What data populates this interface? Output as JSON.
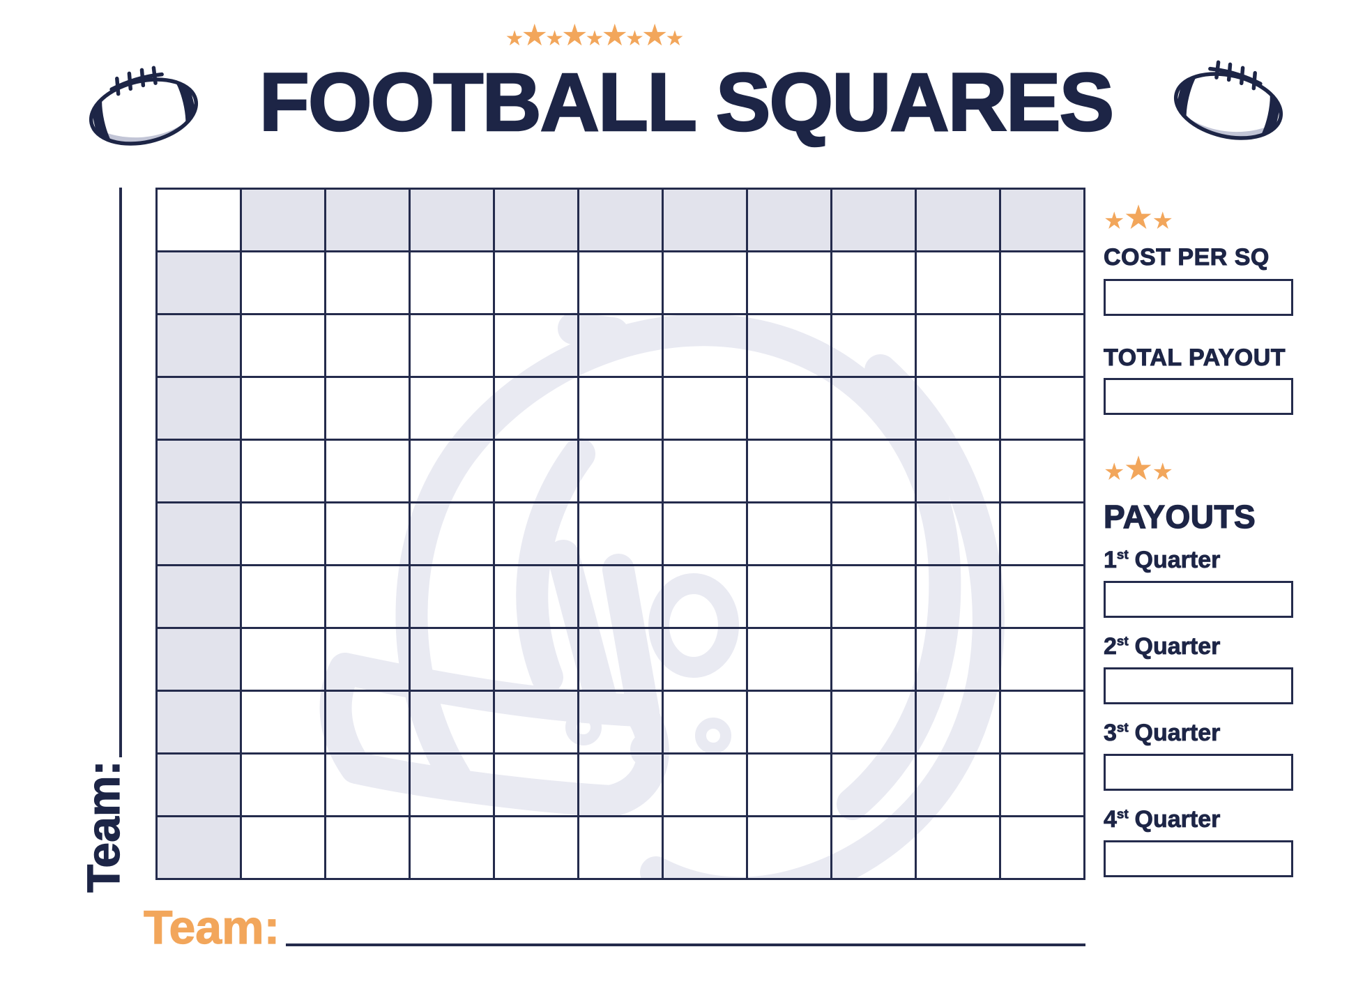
{
  "header": {
    "title": "FOOTBALL SQUARES",
    "top_stars_pattern": [
      "small",
      "large",
      "small",
      "large",
      "small",
      "large",
      "small",
      "large",
      "small"
    ]
  },
  "icons": {
    "star_char": "★"
  },
  "grid": {
    "rows": 11,
    "cols": 11
  },
  "team_left": {
    "label": "Team:"
  },
  "team_bottom": {
    "label": "Team:"
  },
  "sidebar": {
    "cost": {
      "stars": [
        "small",
        "large",
        "small"
      ],
      "label": "COST PER SQ",
      "input_value": ""
    },
    "total": {
      "label": "TOTAL PAYOUT",
      "input_value": ""
    },
    "payouts": {
      "stars": [
        "small",
        "large",
        "small"
      ],
      "title": "PAYOUTS",
      "quarters": [
        {
          "num": "1",
          "suffix": "st",
          "word": "Quarter",
          "input_value": ""
        },
        {
          "num": "2",
          "suffix": "st",
          "word": "Quarter",
          "input_value": ""
        },
        {
          "num": "3",
          "suffix": "st",
          "word": "Quarter",
          "input_value": ""
        },
        {
          "num": "4",
          "suffix": "st",
          "word": "Quarter",
          "input_value": ""
        }
      ]
    }
  },
  "colors": {
    "navy": "#242B4C",
    "ink": "#1D2546",
    "orange": "#F2A65B",
    "cell_shade": "#E2E3EC",
    "watermark": "#E9EAF2"
  }
}
